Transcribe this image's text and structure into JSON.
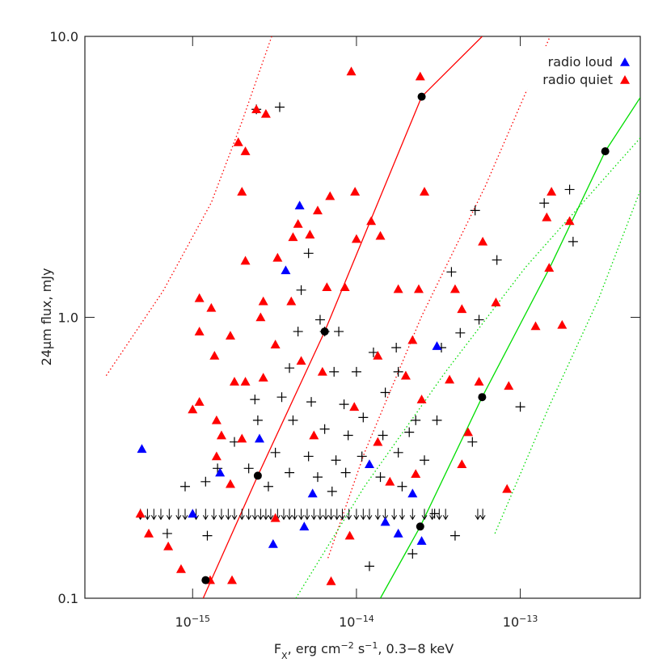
{
  "chart_data": {
    "type": "scatter",
    "xlabel_parts": [
      "F",
      "X",
      ", erg cm",
      "−2",
      " s",
      "−1",
      ", 0.3−8 keV"
    ],
    "ylabel": "24μm flux, mJy",
    "xlog": true,
    "ylog": true,
    "xlim": [
      2.2e-16,
      5.4e-13
    ],
    "ylim": [
      0.1,
      10
    ],
    "xticks": [
      {
        "value": 1e-15,
        "label": "10",
        "exponent": "−15"
      },
      {
        "value": 1e-14,
        "label": "10",
        "exponent": "−14"
      },
      {
        "value": 1e-13,
        "label": "10",
        "exponent": "−13"
      }
    ],
    "yticks": [
      0.1,
      {
        "value": 1,
        "label": "1.0"
      },
      {
        "value": 10,
        "label": "10.0"
      }
    ],
    "legend": "upper right",
    "series": [
      {
        "name": "radio loud",
        "color": "#0000ff",
        "marker": "triangle",
        "x": [
          4.9e-16,
          4.5e-15,
          3.7e-15,
          3.1e-14,
          2.56e-15,
          1.47e-15,
          1e-15,
          3.1e-15,
          4.8e-15,
          5.4e-15,
          1.2e-14,
          2.2e-14,
          2.5e-14,
          1.8e-14,
          1.5e-14
        ],
        "values": [
          0.34,
          2.5,
          1.47,
          0.79,
          0.37,
          0.28,
          0.2,
          0.156,
          0.18,
          0.236,
          0.3,
          0.236,
          0.16,
          0.17,
          0.187
        ]
      },
      {
        "name": "radio quiet",
        "color": "#ff0000",
        "marker": "triangle",
        "x": [
          9.3e-15,
          2.45e-14,
          2.45e-15,
          2.8e-15,
          1.9e-15,
          2.1e-15,
          2e-15,
          9.8e-15,
          6.9e-15,
          2.6e-14,
          1.55e-13,
          5.8e-15,
          4.4e-15,
          5.2e-15,
          4.1e-15,
          1.23e-14,
          1.4e-14,
          1e-14,
          5.9e-14,
          1.45e-13,
          2e-13,
          3.3e-15,
          2.1e-15,
          1.5e-13,
          1.1e-15,
          1.3e-15,
          2.7e-15,
          2.6e-15,
          4e-15,
          6.6e-15,
          8.5e-15,
          1.8e-14,
          2.4e-14,
          4e-14,
          4.4e-14,
          7.1e-14,
          1.24e-13,
          1.8e-13,
          1.1e-15,
          1.7e-15,
          1.36e-15,
          3.2e-15,
          2.7e-15,
          1.8e-15,
          2.1e-15,
          4.6e-15,
          6.2e-15,
          2.2e-14,
          1.35e-14,
          2e-14,
          3.7e-14,
          2.5e-14,
          8.5e-14,
          5.6e-14,
          1.1e-15,
          1e-15,
          1.4e-15,
          2e-15,
          1.5e-15,
          1.4e-15,
          9.7e-15,
          5.5e-15,
          1.35e-14,
          4.4e-14,
          4.8e-14,
          5.4e-16,
          4.8e-16,
          7.1e-16,
          8.5e-16,
          1.28e-15,
          1.74e-15,
          7e-15,
          1.7e-15,
          8.3e-14,
          3.2e-15,
          9.1e-15,
          2.3e-14,
          1.6e-14
        ],
        "values": [
          7.5,
          7.2,
          5.5,
          5.3,
          4.2,
          3.9,
          2.8,
          2.8,
          2.7,
          2.8,
          2.8,
          2.4,
          2.15,
          1.97,
          1.93,
          2.2,
          1.95,
          1.9,
          1.86,
          2.27,
          2.2,
          1.63,
          1.59,
          1.5,
          1.17,
          1.08,
          1.14,
          1.0,
          1.14,
          1.28,
          1.28,
          1.26,
          1.26,
          1.26,
          1.07,
          1.13,
          0.93,
          0.94,
          0.89,
          0.86,
          0.73,
          0.8,
          0.61,
          0.59,
          0.59,
          0.7,
          0.64,
          0.83,
          0.73,
          0.62,
          0.6,
          0.51,
          0.57,
          0.59,
          0.5,
          0.47,
          0.43,
          0.37,
          0.38,
          0.32,
          0.48,
          0.38,
          0.36,
          0.3,
          0.39,
          0.17,
          0.2,
          0.153,
          0.127,
          0.116,
          0.116,
          0.115,
          0.255,
          0.245,
          0.193,
          0.167,
          0.277,
          0.26
        ]
      }
    ],
    "crosses": {
      "color": "#000000",
      "x": [
        2.45e-15,
        3.4e-15,
        2e-13,
        1.4e-13,
        2.1e-13,
        5.3e-14,
        7.2e-14,
        3.8e-14,
        5.1e-15,
        4.6e-15,
        6e-15,
        4.4e-15,
        6.4e-15,
        7.8e-15,
        1.27e-14,
        1.75e-14,
        3.3e-14,
        4.3e-14,
        5.6e-14,
        3.9e-15,
        7.3e-15,
        1e-14,
        1.8e-14,
        1.5e-14,
        2.4e-15,
        3.5e-15,
        5.3e-15,
        8.4e-15,
        1.1e-14,
        2.3e-14,
        3.1e-14,
        1e-13,
        5.1e-14,
        1.8e-15,
        2.5e-15,
        4.1e-15,
        6.4e-15,
        8.9e-15,
        1.45e-14,
        2.1e-14,
        3.2e-15,
        5.1e-15,
        7.5e-15,
        1.08e-14,
        1.8e-14,
        2.6e-14,
        1.42e-15,
        2.2e-15,
        3.9e-15,
        5.8e-15,
        8.6e-15,
        1.4e-14,
        1.2e-15,
        2.9e-15,
        7.1e-15,
        1.9e-14,
        3e-14,
        4e-14,
        2.2e-14,
        1.2e-14,
        1.23e-15,
        7e-16,
        9e-16
      ],
      "values": [
        5.5,
        5.6,
        2.85,
        2.55,
        1.86,
        2.4,
        1.6,
        1.45,
        1.69,
        1.25,
        0.98,
        0.89,
        0.89,
        0.89,
        0.75,
        0.78,
        0.78,
        0.88,
        0.98,
        0.66,
        0.64,
        0.64,
        0.64,
        0.54,
        0.51,
        0.52,
        0.5,
        0.49,
        0.44,
        0.43,
        0.43,
        0.48,
        0.36,
        0.36,
        0.43,
        0.43,
        0.4,
        0.38,
        0.38,
        0.39,
        0.33,
        0.32,
        0.31,
        0.32,
        0.33,
        0.31,
        0.29,
        0.29,
        0.28,
        0.27,
        0.28,
        0.27,
        0.26,
        0.25,
        0.24,
        0.25,
        0.2,
        0.167,
        0.144,
        0.13,
        0.167,
        0.17,
        0.25
      ]
    },
    "dots": {
      "color": "#000000",
      "x": [
        1.2e-15,
        2.5e-15,
        6.4e-15,
        2.5e-14,
        2.45e-14,
        5.85e-14,
        3.3e-13
      ],
      "values": [
        0.116,
        0.273,
        0.89,
        6.1,
        0.18,
        0.52,
        3.9
      ]
    },
    "upper_limits": {
      "color": "#000000",
      "y": 0.2,
      "x": [
        4.8e-16,
        5.3e-16,
        5.8e-16,
        6.4e-16,
        7.2e-16,
        8.2e-16,
        9e-16,
        1.05e-15,
        1.2e-15,
        1.35e-15,
        1.5e-15,
        1.65e-15,
        1.8e-15,
        2e-15,
        2.2e-15,
        2.4e-15,
        2.6e-15,
        2.8e-15,
        3e-15,
        3.3e-15,
        3.6e-15,
        3.9e-15,
        4.2e-15,
        4.6e-15,
        5e-15,
        5.5e-15,
        6e-15,
        6.5e-15,
        7e-15,
        7.6e-15,
        8.2e-15,
        9e-15,
        1e-14,
        1.1e-14,
        1.2e-14,
        1.35e-14,
        1.5e-14,
        1.7e-14,
        1.9e-14,
        2.2e-14,
        2.6e-14,
        2.9e-14,
        3.2e-14,
        3.5e-14,
        5.5e-14,
        5.9e-14
      ]
    },
    "curves": [
      {
        "color": "#ff0000",
        "style": "solid",
        "x": [
          1.16e-15,
          2.5e-15,
          6.4e-15,
          2.5e-14,
          5.86e-14
        ],
        "y": [
          0.1,
          0.273,
          0.89,
          6.1,
          10
        ]
      },
      {
        "color": "#ff0000",
        "style": "dotted",
        "x": [
          2.97e-16,
          6.6e-16,
          1.3e-15,
          2e-15,
          3.04e-15
        ],
        "y": [
          0.62,
          1.24,
          2.56,
          4.97,
          10
        ]
      },
      {
        "color": "#ff0000",
        "style": "dotted",
        "x": [
          6.7e-15,
          1.12e-14,
          2.5e-14,
          6.1e-14,
          1.52e-13
        ],
        "y": [
          0.139,
          0.33,
          1.01,
          2.92,
          10
        ]
      },
      {
        "color": "#00dd00",
        "style": "solid",
        "x": [
          1.4e-14,
          2.45e-14,
          5.85e-14,
          1.52e-13,
          3.3e-13,
          5.4e-13
        ],
        "y": [
          0.1,
          0.18,
          0.52,
          1.51,
          3.9,
          6.06
        ]
      },
      {
        "color": "#00dd00",
        "style": "dotted",
        "x": [
          4.27e-15,
          1.12e-14,
          3.5e-14,
          1.08e-13,
          5.4e-13
        ],
        "y": [
          0.1,
          0.25,
          0.64,
          1.51,
          4.35
        ]
      },
      {
        "color": "#00dd00",
        "style": "dotted",
        "x": [
          7e-14,
          1.52e-13,
          3e-13,
          5.4e-13
        ],
        "y": [
          0.17,
          0.49,
          1.16,
          2.83
        ]
      }
    ]
  }
}
